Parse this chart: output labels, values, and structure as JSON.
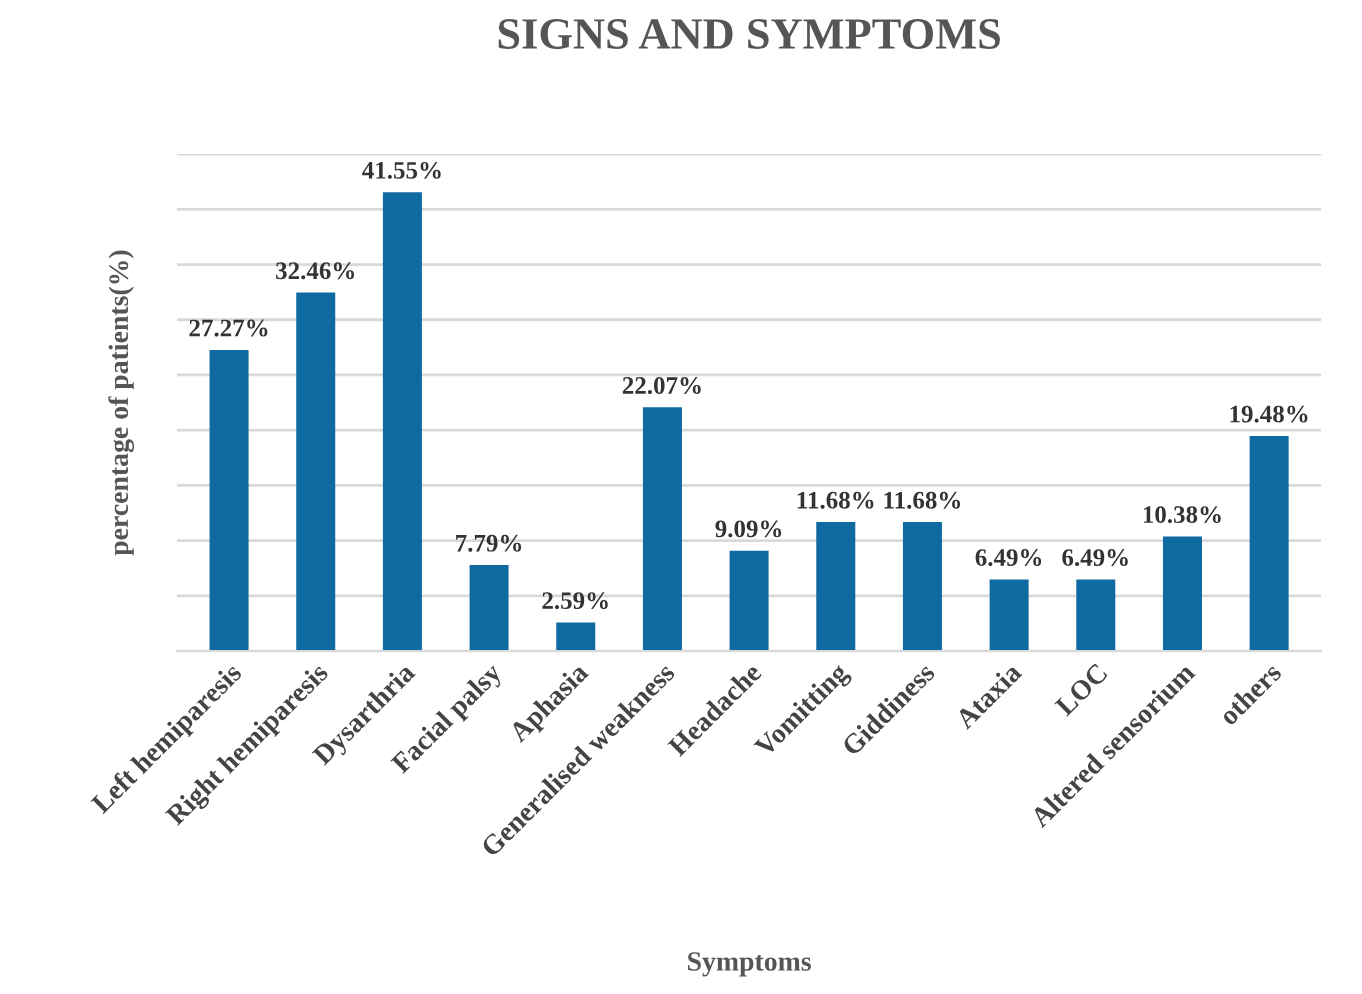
{
  "chart_data": {
    "type": "bar",
    "title": "SIGNS AND SYMPTOMS",
    "xlabel": "Symptoms",
    "ylabel": "percentage of patients(%)",
    "categories": [
      "Left hemiparesis",
      "Right hemiparesis",
      "Dysarthria",
      "Facial palsy",
      "Aphasia",
      "Generalised weakness",
      "Headache",
      "Vomitting",
      "Giddiness",
      "Ataxia",
      "LOC",
      "Altered sensorium",
      "others"
    ],
    "values": [
      27.27,
      32.46,
      41.55,
      7.79,
      2.59,
      22.07,
      9.09,
      11.68,
      11.68,
      6.49,
      6.49,
      10.38,
      19.48
    ],
    "value_labels": [
      "27.27%",
      "32.46%",
      "41.55%",
      "7.79%",
      "2.59%",
      "22.07%",
      "9.09%",
      "11.68%",
      "11.68%",
      "6.49%",
      "6.49%",
      "10.38%",
      "19.48%"
    ],
    "color": "#0e6aa0",
    "ylim": [
      0,
      45
    ],
    "yticks": [
      {
        "value": 0,
        "label": null
      },
      {
        "value": 5,
        "label": null
      },
      {
        "value": 10,
        "label": null
      },
      {
        "value": 15,
        "label": null
      },
      {
        "value": 20,
        "label": null
      },
      {
        "value": 25,
        "label": null
      },
      {
        "value": 30,
        "label": null
      },
      {
        "value": 35,
        "label": null
      },
      {
        "value": 40,
        "label": null
      },
      {
        "value": 45,
        "label": null
      }
    ],
    "grid": "y",
    "legend": false
  }
}
